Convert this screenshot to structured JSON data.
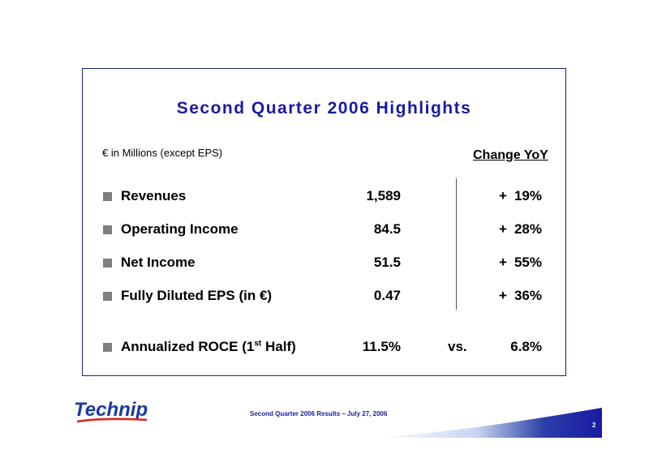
{
  "slide": {
    "title": "Second Quarter 2006 Highlights",
    "subtitle": "€ in Millions (except EPS)",
    "change_header": "Change YoY",
    "rows": [
      {
        "label": "Revenues",
        "value": "1,589",
        "sign": "+",
        "change": "19%"
      },
      {
        "label": "Operating Income",
        "value": "84.5",
        "sign": "+",
        "change": "28%"
      },
      {
        "label": "Net Income",
        "value": "51.5",
        "sign": "+",
        "change": "55%"
      },
      {
        "label": "Fully Diluted EPS (in €)",
        "value": "0.47",
        "sign": "+",
        "change": "36%"
      }
    ],
    "roce": {
      "label_prefix": "Annualized ROCE (1",
      "label_sup": "st",
      "label_suffix": " Half)",
      "value": "11.5%",
      "vs": "vs.",
      "compare": "6.8%"
    }
  },
  "footer": {
    "logo": "Technip",
    "text": "Second Quarter 2006 Results – July 27, 2006",
    "page": "2"
  },
  "colors": {
    "title": "#1a1aa0",
    "frame": "#1a237e",
    "bullet": "#7f7f7f",
    "logo_blue": "#1a3a9c",
    "logo_red": "#e02020"
  }
}
